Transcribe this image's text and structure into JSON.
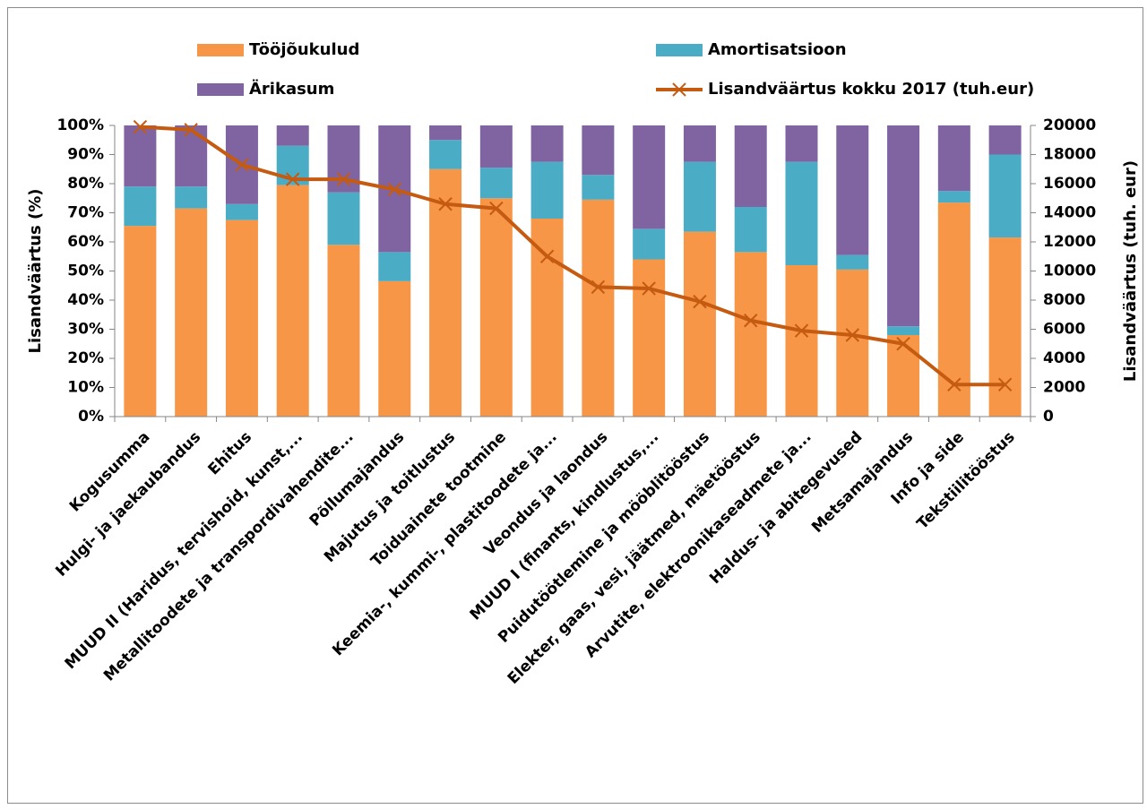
{
  "chart_data": {
    "type": "bar",
    "stacked": true,
    "percent_stacked": true,
    "categories": [
      "Kogusumma",
      "Hulgi- ja jaekaubandus",
      "Ehitus",
      "MUUD II (Haridus, tervishoid, kunst,...",
      "Metallitoodete ja transpordivahendite...",
      "Põllumajandus",
      "Majutus ja toitlustus",
      "Toiduainete tootmine",
      "Keemia-, kummi-, plastitoodete ja...",
      "Veondus ja laondus",
      "MUUD I (finants, kindlustus,...",
      "Puidutöötlemine ja mööblitööstus",
      "Elekter, gaas, vesi, jäätmed, mäetööstus",
      "Arvutite, elektroonikaseadmete ja...",
      "Haldus- ja abitegevused",
      "Metsamajandus",
      "Info ja side",
      "Tekstiilitööstus"
    ],
    "series": [
      {
        "name": "Tööjõukulud",
        "color": "#f79646",
        "values": [
          65.5,
          71.5,
          67.5,
          79.5,
          59,
          46.5,
          85,
          75,
          68,
          74.5,
          54,
          63.5,
          56.5,
          52,
          50.5,
          28,
          73.5,
          61.5
        ]
      },
      {
        "name": "Amortisatsioon",
        "color": "#4bacc6",
        "values": [
          13.5,
          7.5,
          5.5,
          13.5,
          18,
          10,
          10,
          10.5,
          19.5,
          8.5,
          10.5,
          24,
          15.5,
          35.5,
          5,
          3,
          4,
          28.5
        ]
      },
      {
        "name": "Ärikasum",
        "color": "#8064a2",
        "values": [
          21,
          21,
          27,
          7,
          23,
          43.5,
          5,
          14.5,
          12.5,
          17,
          35.5,
          12.5,
          28,
          12.5,
          44.5,
          69,
          22.5,
          10
        ]
      }
    ],
    "line_series": {
      "name": "Lisandväärtus kokku 2017 (tuh.eur)",
      "color": "#c55a11",
      "axis": "right",
      "values": [
        19900,
        19700,
        17300,
        16300,
        16300,
        15600,
        14600,
        14300,
        11000,
        8900,
        8800,
        7900,
        6600,
        5900,
        5600,
        5000,
        2200,
        2200
      ]
    },
    "ylabel": "Lisandväärtus (%)",
    "ylabel_right": "Lisandväärtus (tuh. eur)",
    "ylim": [
      0,
      100
    ],
    "ylim_right": [
      0,
      20000
    ],
    "yticks": [
      "0%",
      "10%",
      "20%",
      "30%",
      "40%",
      "50%",
      "60%",
      "70%",
      "80%",
      "90%",
      "100%"
    ],
    "yticks_right": [
      "0",
      "2000",
      "4000",
      "6000",
      "8000",
      "10000",
      "12000",
      "14000",
      "16000",
      "18000",
      "20000"
    ],
    "legend_position": "top",
    "grid": false
  }
}
